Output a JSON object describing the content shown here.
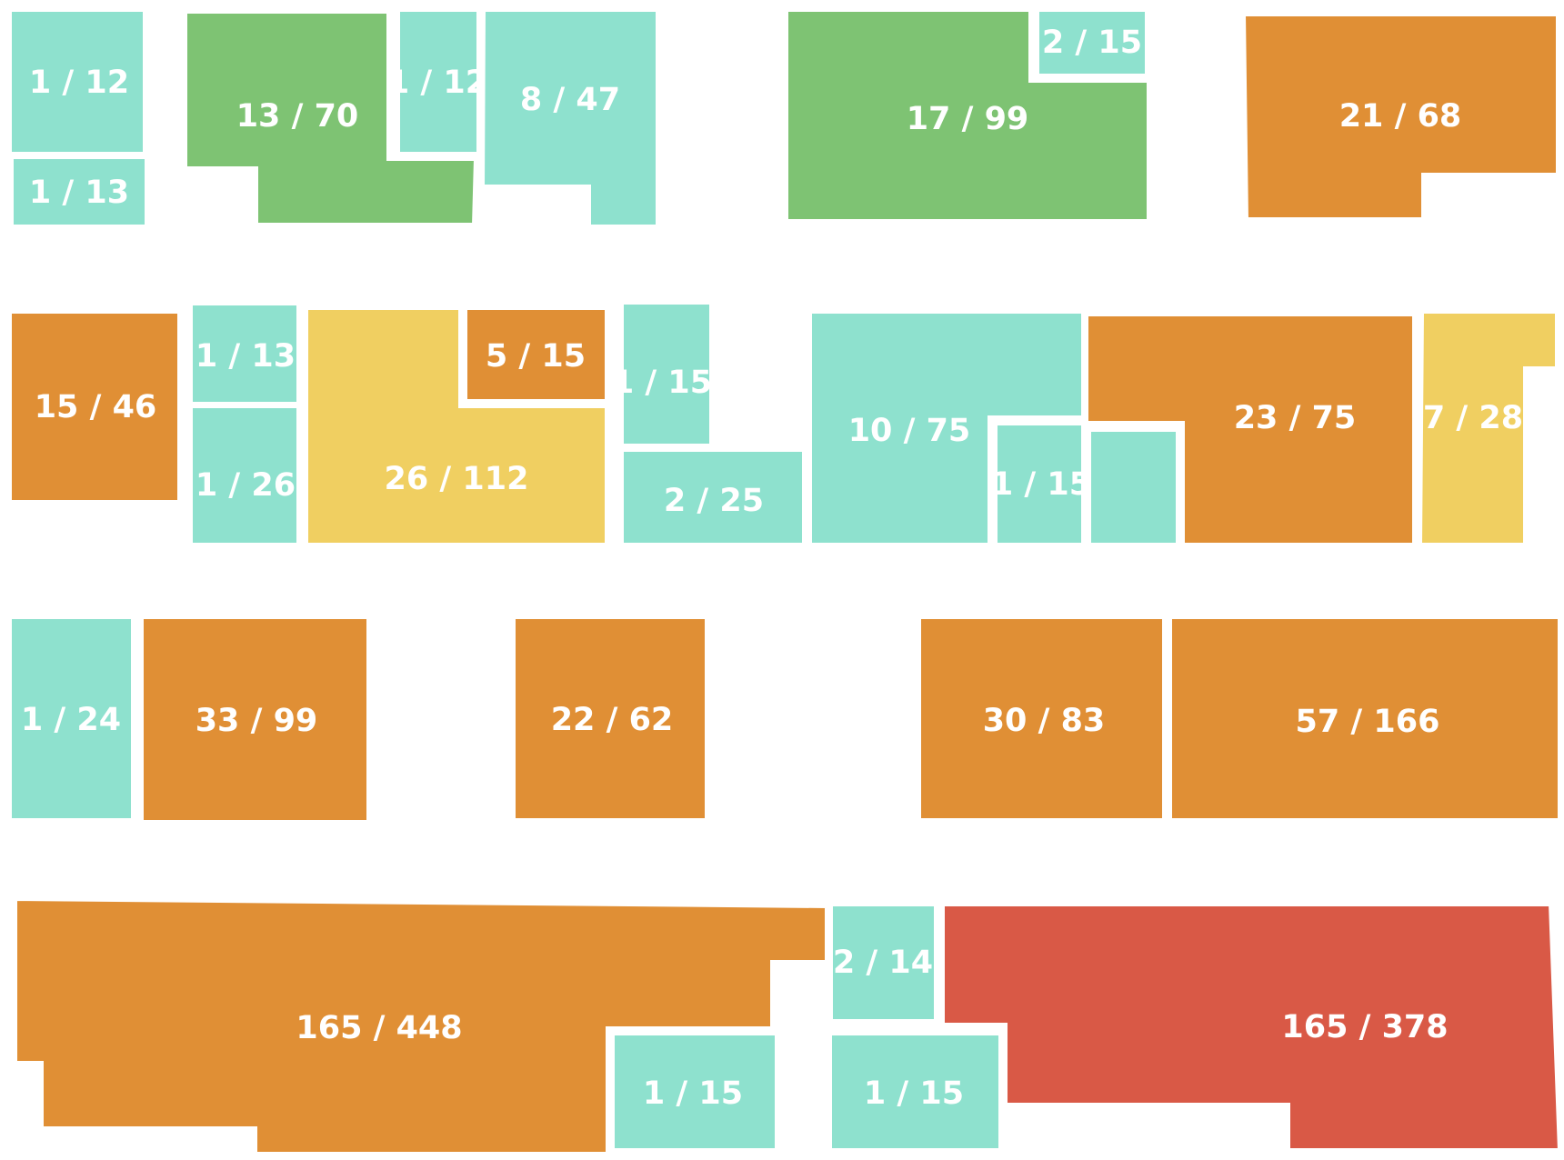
{
  "palette": {
    "teal": "#8EE1CE",
    "green": "#7EC373",
    "orange": "#E08F35",
    "yellow": "#F0CF61",
    "red": "#D95946"
  },
  "units": [
    {
      "id": "u01",
      "label": "1 / 12",
      "color": "teal"
    },
    {
      "id": "u02",
      "label": "1 / 13",
      "color": "teal"
    },
    {
      "id": "u03",
      "label": "13 / 70",
      "color": "green"
    },
    {
      "id": "u04",
      "label": "1 / 12",
      "color": "teal"
    },
    {
      "id": "u05",
      "label": "8 / 47",
      "color": "teal"
    },
    {
      "id": "u06",
      "label": "17 / 99",
      "color": "green"
    },
    {
      "id": "u07",
      "label": "2 / 15",
      "color": "teal"
    },
    {
      "id": "u08",
      "label": "21 / 68",
      "color": "orange"
    },
    {
      "id": "u09",
      "label": "15 / 46",
      "color": "orange"
    },
    {
      "id": "u10",
      "label": "1 / 13",
      "color": "teal"
    },
    {
      "id": "u11",
      "label": "1 / 26",
      "color": "teal"
    },
    {
      "id": "u12",
      "label": "26 / 112",
      "color": "yellow"
    },
    {
      "id": "u13",
      "label": "5 / 15",
      "color": "orange"
    },
    {
      "id": "u14",
      "label": "1 / 15",
      "color": "teal"
    },
    {
      "id": "u15",
      "label": "2 / 25",
      "color": "teal"
    },
    {
      "id": "u16",
      "label": "10 / 75",
      "color": "teal"
    },
    {
      "id": "u17",
      "label": "1 / 15",
      "color": "teal"
    },
    {
      "id": "u18",
      "label": "",
      "color": "teal"
    },
    {
      "id": "u19",
      "label": "23 / 75",
      "color": "orange"
    },
    {
      "id": "u20",
      "label": "7 / 28",
      "color": "yellow"
    },
    {
      "id": "u21",
      "label": "1 / 24",
      "color": "teal"
    },
    {
      "id": "u22",
      "label": "33 / 99",
      "color": "orange"
    },
    {
      "id": "u23",
      "label": "22 / 62",
      "color": "orange"
    },
    {
      "id": "u24",
      "label": "30 / 83",
      "color": "orange"
    },
    {
      "id": "u25",
      "label": "57 / 166",
      "color": "orange"
    },
    {
      "id": "u26",
      "label": "165 / 448",
      "color": "orange"
    },
    {
      "id": "u27",
      "label": "2 / 14",
      "color": "teal"
    },
    {
      "id": "u28",
      "label": "165 / 378",
      "color": "red"
    },
    {
      "id": "u29",
      "label": "1 / 15",
      "color": "teal"
    },
    {
      "id": "u30",
      "label": "1 / 15",
      "color": "teal"
    }
  ]
}
